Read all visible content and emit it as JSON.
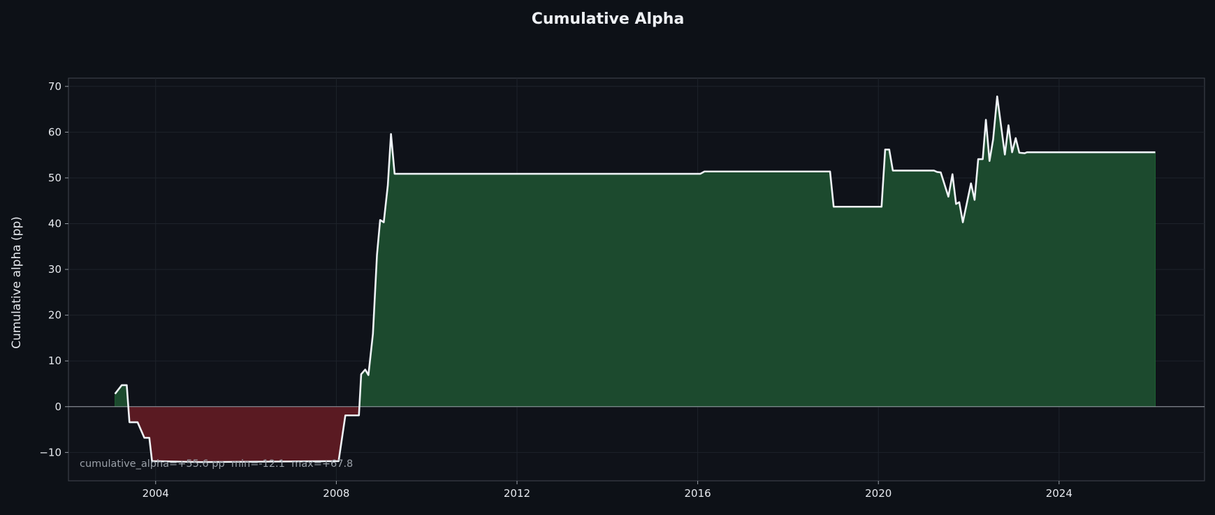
{
  "chart_data": {
    "type": "area",
    "title": "Cumulative Alpha",
    "xlabel": "",
    "ylabel": "Cumulative alpha (pp)",
    "xlim": [
      2002.07,
      2027.22
    ],
    "ylim": [
      -16.2,
      71.8
    ],
    "grid": true,
    "x_ticks": [
      2004,
      2008,
      2012,
      2016,
      2020,
      2024
    ],
    "x_tick_labels": [
      "2004",
      "2008",
      "2012",
      "2016",
      "2020",
      "2024"
    ],
    "y_ticks": [
      -10,
      0,
      10,
      20,
      30,
      40,
      50,
      60,
      70
    ],
    "y_tick_labels": [
      "−10",
      "0",
      "10",
      "20",
      "30",
      "40",
      "50",
      "60",
      "70"
    ],
    "annotation": "cumulative_alpha=+55.6 pp  min=-12.1  max=+67.8",
    "colors": {
      "line": "#eef2f6",
      "positive_fill": "#1c4a2e",
      "negative_fill": "#5a1a22",
      "zero_line": "#9aa0a8"
    },
    "series": [
      {
        "name": "cumulative_alpha",
        "x": [
          2003.1,
          2003.25,
          2003.36,
          2003.42,
          2003.6,
          2003.75,
          2003.86,
          2003.92,
          2005.0,
          2008.05,
          2008.2,
          2008.5,
          2008.55,
          2008.64,
          2008.71,
          2008.81,
          2008.9,
          2008.97,
          2009.05,
          2009.14,
          2009.21,
          2009.29,
          2016.06,
          2016.15,
          2018.93,
          2019.01,
          2020.07,
          2020.15,
          2020.24,
          2020.32,
          2021.23,
          2021.3,
          2021.38,
          2021.55,
          2021.64,
          2021.72,
          2021.79,
          2021.87,
          2022.05,
          2022.13,
          2022.21,
          2022.31,
          2022.38,
          2022.46,
          2022.54,
          2022.63,
          2022.8,
          2022.88,
          2022.96,
          2023.04,
          2023.12,
          2023.24,
          2023.29,
          2026.13
        ],
        "y": [
          2.8,
          4.7,
          4.7,
          -3.4,
          -3.4,
          -6.8,
          -6.8,
          -11.9,
          -12.1,
          -11.9,
          -1.9,
          -1.9,
          7.1,
          8.1,
          6.9,
          15.9,
          33.2,
          40.8,
          40.3,
          48.4,
          59.6,
          50.9,
          50.9,
          51.4,
          51.4,
          43.7,
          43.7,
          56.2,
          56.2,
          51.6,
          51.6,
          51.3,
          51.2,
          45.9,
          50.8,
          44.3,
          44.7,
          40.3,
          48.8,
          45.2,
          54.1,
          54.1,
          62.7,
          53.7,
          58.4,
          67.8,
          55.1,
          61.5,
          55.6,
          58.7,
          55.5,
          55.4,
          55.6,
          55.6
        ]
      }
    ]
  }
}
